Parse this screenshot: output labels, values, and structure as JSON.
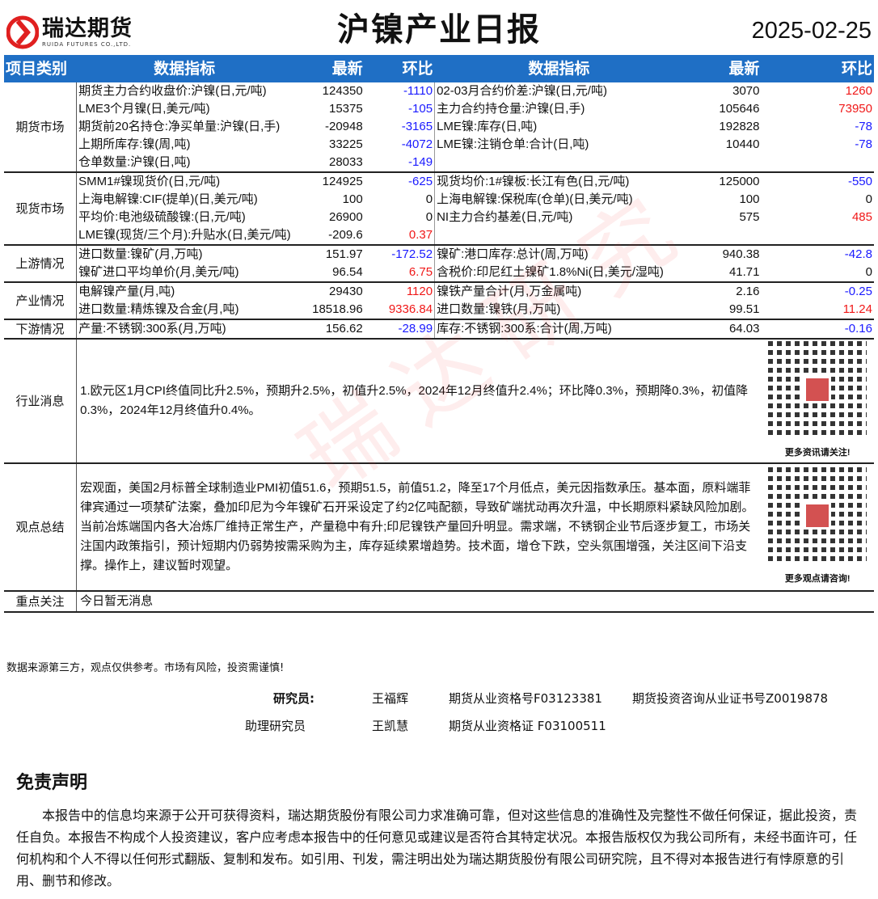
{
  "header": {
    "logo_cn": "瑞达期货",
    "logo_en": "RUIDA FUTURES CO.,LTD.",
    "title": "沪镍产业日报",
    "date": "2025-02-25",
    "watermark": "瑞达研究"
  },
  "columns": [
    "项目类别",
    "数据指标",
    "最新",
    "环比",
    "数据指标",
    "最新",
    "环比"
  ],
  "sections": [
    {
      "category": "期货市场",
      "rows": [
        {
          "l": [
            "期货主力合约收盘价:沪镍(日,元/吨)",
            "124350",
            "-1110"
          ],
          "r": [
            "02-03月合约价差:沪镍(日,元/吨)",
            "3070",
            "1260"
          ]
        },
        {
          "l": [
            "LME3个月镍(日,美元/吨)",
            "15375",
            "-105"
          ],
          "r": [
            "主力合约持仓量:沪镍(日,手)",
            "105646",
            "73950"
          ]
        },
        {
          "l": [
            "期货前20名持仓:净买单量:沪镍(日,手)",
            "-20948",
            "-3165"
          ],
          "r": [
            "LME镍:库存(日,吨)",
            "192828",
            "-78"
          ]
        },
        {
          "l": [
            "上期所库存:镍(周,吨)",
            "33225",
            "-4072"
          ],
          "r": [
            "LME镍:注销仓单:合计(日,吨)",
            "10440",
            "-78"
          ]
        },
        {
          "l": [
            "仓单数量:沪镍(日,吨)",
            "28033",
            "-149"
          ],
          "r": [
            "",
            "",
            ""
          ]
        }
      ]
    },
    {
      "category": "现货市场",
      "rows": [
        {
          "l": [
            "SMM1#镍现货价(日,元/吨)",
            "124925",
            "-625"
          ],
          "r": [
            "现货均价:1#镍板:长江有色(日,元/吨)",
            "125000",
            "-550"
          ]
        },
        {
          "l": [
            "上海电解镍:CIF(提单)(日,美元/吨)",
            "100",
            "0"
          ],
          "r": [
            "上海电解镍:保税库(仓单)(日,美元/吨)",
            "100",
            "0"
          ]
        },
        {
          "l": [
            "平均价:电池级硫酸镍:(日,元/吨)",
            "26900",
            "0"
          ],
          "r": [
            "NI主力合约基差(日,元/吨)",
            "575",
            "485"
          ]
        },
        {
          "l": [
            "LME镍(现货/三个月):升贴水(日,美元/吨)",
            "-209.6",
            "0.37"
          ],
          "r": [
            "",
            "",
            ""
          ]
        }
      ]
    },
    {
      "category": "上游情况",
      "rows": [
        {
          "l": [
            "进口数量:镍矿(月,万吨)",
            "151.97",
            "-172.52"
          ],
          "r": [
            "镍矿:港口库存:总计(周,万吨)",
            "940.38",
            "-42.8"
          ]
        },
        {
          "l": [
            "镍矿进口平均单价(月,美元/吨)",
            "96.54",
            "6.75"
          ],
          "r": [
            "含税价:印尼红土镍矿1.8%Ni(日,美元/湿吨)",
            "41.71",
            "0"
          ]
        }
      ]
    },
    {
      "category": "产业情况",
      "rows": [
        {
          "l": [
            "电解镍产量(月,吨)",
            "29430",
            "1120"
          ],
          "r": [
            "镍铁产量合计(月,万金属吨)",
            "2.16",
            "-0.25"
          ]
        },
        {
          "l": [
            "进口数量:精炼镍及合金(月,吨)",
            "18518.96",
            "9336.84"
          ],
          "r": [
            "进口数量:镍铁(月,万吨)",
            "99.51",
            "11.24"
          ]
        }
      ]
    },
    {
      "category": "下游情况",
      "rows": [
        {
          "l": [
            "产量:不锈钢:300系(月,万吨)",
            "156.62",
            "-28.99"
          ],
          "r": [
            "库存:不锈钢:300系:合计(周,万吨)",
            "64.03",
            "-0.16"
          ]
        }
      ]
    }
  ],
  "news": {
    "category": "行业消息",
    "text": "1.欧元区1月CPI终值同比升2.5%，预期升2.5%，初值升2.5%，2024年12月终值升2.4%；环比降0.3%，预期降0.3%，初值降0.3%，2024年12月终值升0.4%。",
    "qr_caption": "更多资讯请关注!"
  },
  "summary": {
    "category": "观点总结",
    "text": "宏观面，美国2月标普全球制造业PMI初值51.6，预期51.5，前值51.2，降至17个月低点，美元因指数承压。基本面，原料端菲律宾通过一项禁矿法案，叠加印尼为今年镍矿石开采设定了约2亿吨配额，导致矿端扰动再次升温，中长期原料紧缺风险加剧。当前冶炼端国内各大冶炼厂维持正常生产，产量稳中有升;印尼镍铁产量回升明显。需求端，不锈钢企业节后逐步复工，市场关注国内政策指引，预计短期内仍弱势按需采购为主，库存延续累增趋势。技术面，增仓下跌，空头氛围增强，关注区间下沿支撑。操作上，建议暂时观望。",
    "qr_caption": "更多观点请咨询!"
  },
  "focus": {
    "category": "重点关注",
    "text": "今日暂无消息"
  },
  "source_note": "数据来源第三方，观点仅供参考。市场有风险，投资需谨慎!",
  "researchers": [
    {
      "role": "研究员:",
      "name": "王福辉",
      "cert1": "期货从业资格号F03123381",
      "cert2": "期货投资咨询从业证书号Z0019878"
    },
    {
      "role": "助理研究员",
      "name": "王凯慧",
      "cert1": "期货从业资格证 F03100511",
      "cert2": ""
    }
  ],
  "disclaimer": {
    "title": "免责声明",
    "text": "本报告中的信息均来源于公开可获得资料，瑞达期货股份有限公司力求准确可靠，但对这些信息的准确性及完整性不做任何保证，据此投资，责任自负。本报告不构成个人投资建议，客户应考虑本报告中的任何意见或建议是否符合其特定状况。本报告版权仅为我公司所有，未经书面许可，任何机构和个人不得以任何形式翻版、复制和发布。如引用、刊发，需注明出处为瑞达期货股份有限公司研究院，且不得对本报告进行有悖原意的引用、删节和修改。"
  },
  "colors": {
    "header_bg": "#1f6fc5",
    "negative": "#1a1aff",
    "positive": "#f01818",
    "logo": "#e02020"
  }
}
